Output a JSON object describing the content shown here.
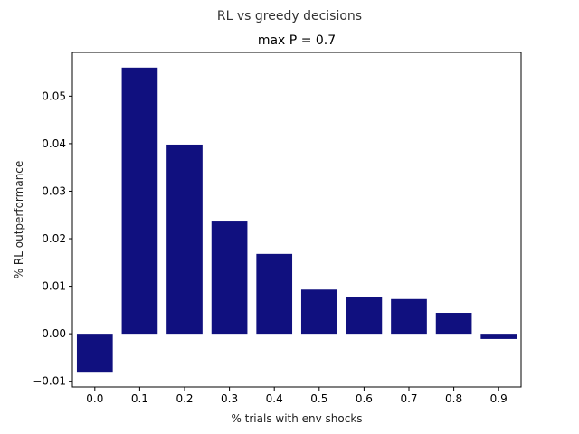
{
  "chart_data": {
    "type": "bar",
    "suptitle": "RL vs greedy decisions",
    "title": "max P = 0.7",
    "xlabel": "% trials with env shocks",
    "ylabel": "% RL outperformance",
    "categories": [
      "0.0",
      "0.1",
      "0.2",
      "0.3",
      "0.4",
      "0.5",
      "0.6",
      "0.7",
      "0.8",
      "0.9"
    ],
    "values": [
      -0.008,
      0.056,
      0.0398,
      0.0238,
      0.0168,
      0.0093,
      0.0077,
      0.0073,
      0.0044,
      -0.0011
    ],
    "yticks": [
      -0.01,
      0.0,
      0.01,
      0.02,
      0.03,
      0.04,
      0.05
    ],
    "ytick_labels": [
      "−0.01",
      "0.00",
      "0.01",
      "0.02",
      "0.03",
      "0.04",
      "0.05"
    ],
    "ylim": [
      -0.0112,
      0.0592
    ],
    "bar_color": "#10107f",
    "grid": false,
    "legend": "none"
  }
}
